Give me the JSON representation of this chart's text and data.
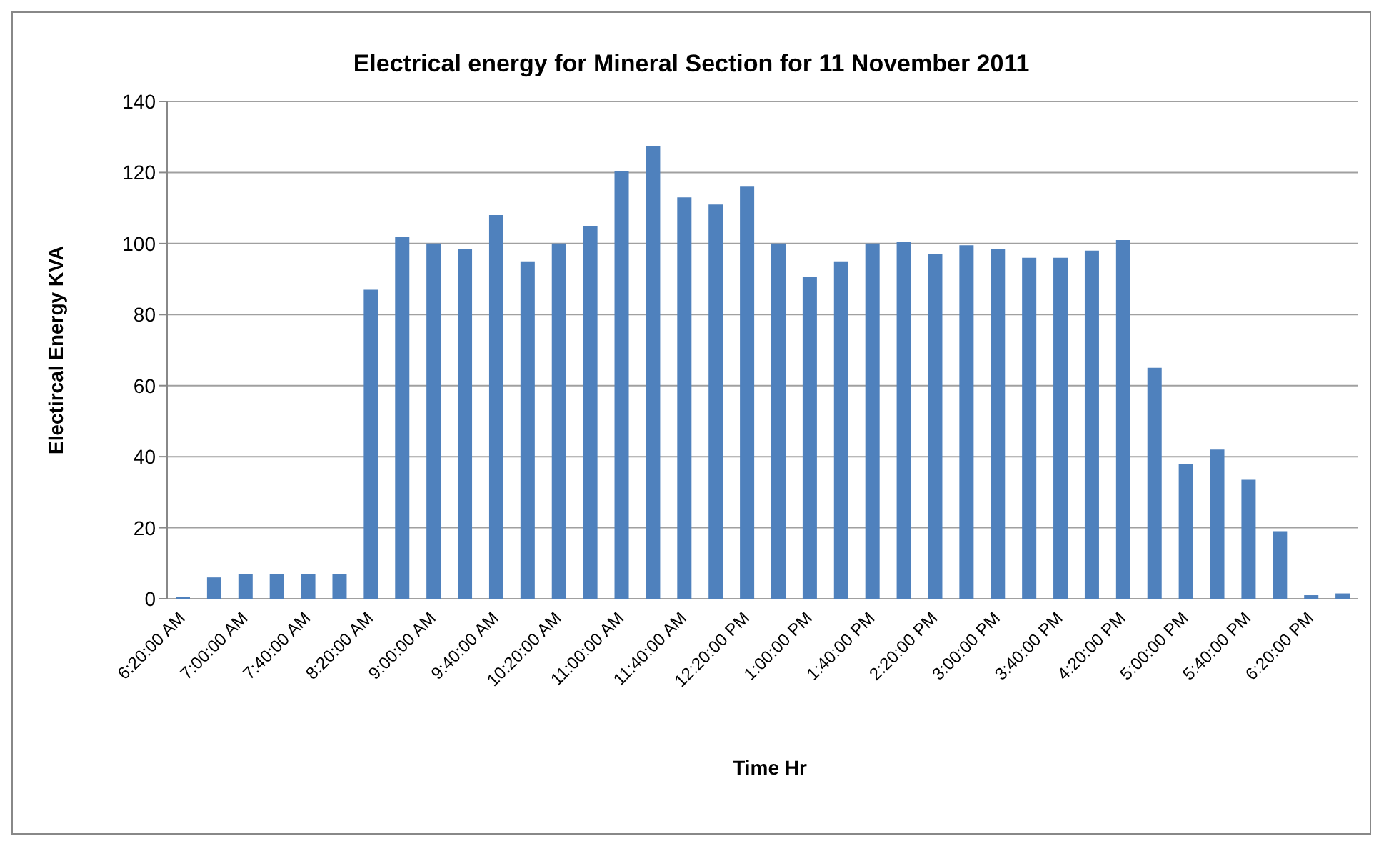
{
  "chart_data": {
    "type": "bar",
    "title": "Electrical energy for Mineral Section for 11 November 2011",
    "xlabel": "Time Hr",
    "ylabel": "Electircal Energy KVA",
    "categories": [
      "6:20:00 AM",
      null,
      "7:00:00 AM",
      null,
      "7:40:00 AM",
      null,
      "8:20:00 AM",
      null,
      "9:00:00 AM",
      null,
      "9:40:00 AM",
      null,
      "10:20:00 AM",
      null,
      "11:00:00 AM",
      null,
      "11:40:00 AM",
      null,
      "12:20:00 PM",
      null,
      "1:00:00 PM",
      null,
      "1:40:00 PM",
      null,
      "2:20:00 PM",
      null,
      "3:00:00 PM",
      null,
      "3:40:00 PM",
      null,
      "4:20:00 PM",
      null,
      "5:00:00 PM",
      null,
      "5:40:00 PM",
      null,
      "6:20:00 PM",
      null
    ],
    "values": [
      0.5,
      6,
      7,
      7,
      7,
      7,
      87,
      102,
      100,
      98.5,
      108,
      95,
      100,
      105,
      120.5,
      127.5,
      113,
      111,
      116,
      100,
      90.5,
      95,
      100,
      100.5,
      97,
      99.5,
      98.5,
      96,
      96,
      98,
      101,
      65,
      38,
      42,
      33.5,
      19,
      1,
      1.5
    ],
    "color": "#4f81bd",
    "ylim": [
      0,
      140
    ],
    "yticks": [
      0,
      20,
      40,
      60,
      80,
      100,
      120,
      140
    ],
    "grid": "y",
    "legend": false
  }
}
